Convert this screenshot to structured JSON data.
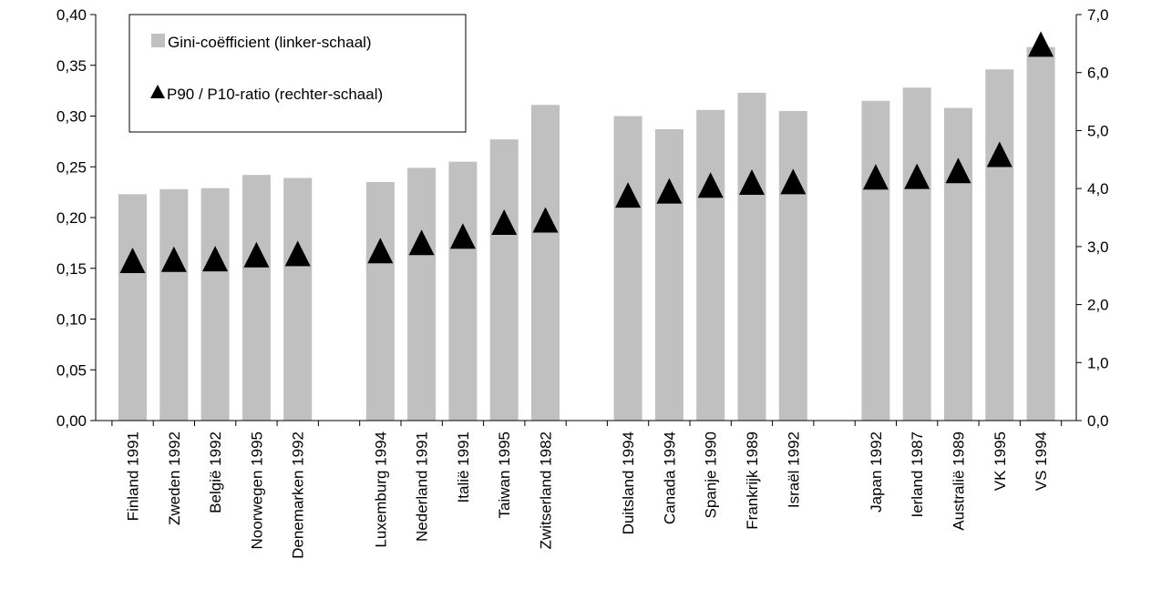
{
  "chart_data": {
    "type": "bar",
    "categories": [
      "Finland 1991",
      "Zweden 1992",
      "België 1992",
      "Noorwegen 1995",
      "Denemarken 1992",
      "Luxemburg 1994",
      "Nederland 1991",
      "Italië 1991",
      "Taiwan 1995",
      "Zwitserland 1982",
      "Duitsland 1994",
      "Canada 1994",
      "Spanje 1990",
      "Frankrijk 1989",
      "Israël 1992",
      "Japan 1992",
      "Ierland 1987",
      "Australië 1989",
      "VK 1995",
      "VS 1994"
    ],
    "groups": [
      5,
      5,
      5,
      5
    ],
    "series": [
      {
        "name": "Gini-coëfficient (linker-schaal)",
        "type": "bar",
        "axis": "left",
        "values": [
          0.223,
          0.228,
          0.229,
          0.242,
          0.239,
          0.235,
          0.249,
          0.255,
          0.277,
          0.311,
          0.3,
          0.287,
          0.306,
          0.323,
          0.305,
          0.315,
          0.328,
          0.308,
          0.346,
          0.368
        ]
      },
      {
        "name": "P90 / P10-ratio (rechter-schaal)",
        "type": "scatter",
        "axis": "right",
        "values": [
          2.73,
          2.75,
          2.76,
          2.83,
          2.85,
          2.9,
          3.04,
          3.15,
          3.39,
          3.43,
          3.86,
          3.93,
          4.03,
          4.08,
          4.09,
          4.17,
          4.18,
          4.28,
          4.56,
          6.46
        ]
      }
    ],
    "y_left": {
      "range": [
        0,
        0.4
      ],
      "step": 0.05,
      "ticks": [
        "0,00",
        "0,05",
        "0,10",
        "0,15",
        "0,20",
        "0,25",
        "0,30",
        "0,35",
        "0,40"
      ]
    },
    "y_right": {
      "range": [
        0,
        7.0
      ],
      "step": 1.0,
      "ticks": [
        "0,0",
        "1,0",
        "2,0",
        "3,0",
        "4,0",
        "5,0",
        "6,0",
        "7,0"
      ]
    },
    "grid": false,
    "legend": "top-left",
    "colors": {
      "bar": "#c0c0c0",
      "marker": "#000000",
      "axis": "#000000"
    }
  }
}
